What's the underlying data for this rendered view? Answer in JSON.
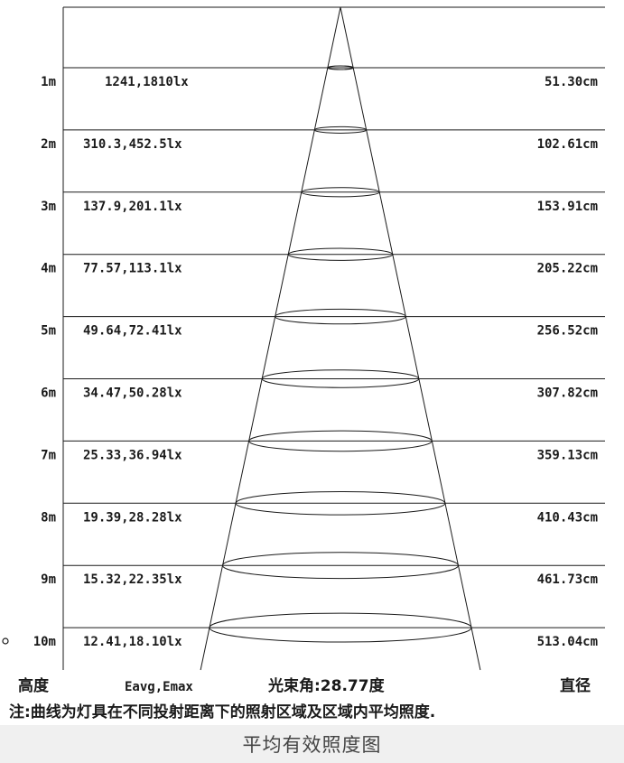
{
  "rows": [
    {
      "height": "1m",
      "lux": "1241,1810lx",
      "diameter": "51.30cm"
    },
    {
      "height": "2m",
      "lux": "310.3,452.5lx",
      "diameter": "102.61cm"
    },
    {
      "height": "3m",
      "lux": "137.9,201.1lx",
      "diameter": "153.91cm"
    },
    {
      "height": "4m",
      "lux": "77.57,113.1lx",
      "diameter": "205.22cm"
    },
    {
      "height": "5m",
      "lux": "49.64,72.41lx",
      "diameter": "256.52cm"
    },
    {
      "height": "6m",
      "lux": "34.47,50.28lx",
      "diameter": "307.82cm"
    },
    {
      "height": "7m",
      "lux": "25.33,36.94lx",
      "diameter": "359.13cm"
    },
    {
      "height": "8m",
      "lux": "19.39,28.28lx",
      "diameter": "410.43cm"
    },
    {
      "height": "9m",
      "lux": "15.32,22.35lx",
      "diameter": "461.73cm"
    },
    {
      "height": "10m",
      "lux": "12.41,18.10lx",
      "diameter": "513.04cm"
    }
  ],
  "footer": {
    "height_label": "高度",
    "lux_label": "Eavg,Emax",
    "beam_angle": "光束角:28.77度",
    "diameter_label": "直径"
  },
  "note": "注:曲线为灯具在不同投射距离下的照射区域及区域内平均照度.",
  "caption": "平均有效照度图",
  "colors": {
    "ink": "#1a1a1a",
    "caption_bg": "#f0f0f0"
  }
}
